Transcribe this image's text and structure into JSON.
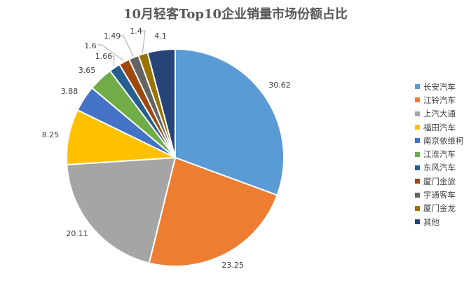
{
  "chart_data": {
    "type": "pie",
    "title": "10月轻客Top10企业销量市场份额占比",
    "legend_position": "right",
    "slices": [
      {
        "name": "长安汽车",
        "value": 30.62,
        "label": "30.62",
        "color": "#5B9BD5"
      },
      {
        "name": "江铃汽车",
        "value": 23.25,
        "label": "23.25",
        "color": "#ED7D31"
      },
      {
        "name": "上汽大通",
        "value": 20.11,
        "label": "20.11",
        "color": "#A5A5A5"
      },
      {
        "name": "福田汽车",
        "value": 8.25,
        "label": "8.25",
        "color": "#FFC000"
      },
      {
        "name": "南京依维柯",
        "value": 3.88,
        "label": "3.88",
        "color": "#4472C4"
      },
      {
        "name": "江淮汽车",
        "value": 3.65,
        "label": "3.65",
        "color": "#70AD47"
      },
      {
        "name": "东风汽车",
        "value": 1.66,
        "label": "1.66",
        "color": "#255E91"
      },
      {
        "name": "厦门金旅",
        "value": 1.6,
        "label": "1.6",
        "color": "#9E480E"
      },
      {
        "name": "宇通客车",
        "value": 1.49,
        "label": "1.49",
        "color": "#636363"
      },
      {
        "name": "厦门金龙",
        "value": 1.4,
        "label": "1.4",
        "color": "#997300"
      },
      {
        "name": "其他",
        "value": 4.1,
        "label": "4.1",
        "color": "#264478"
      }
    ]
  }
}
